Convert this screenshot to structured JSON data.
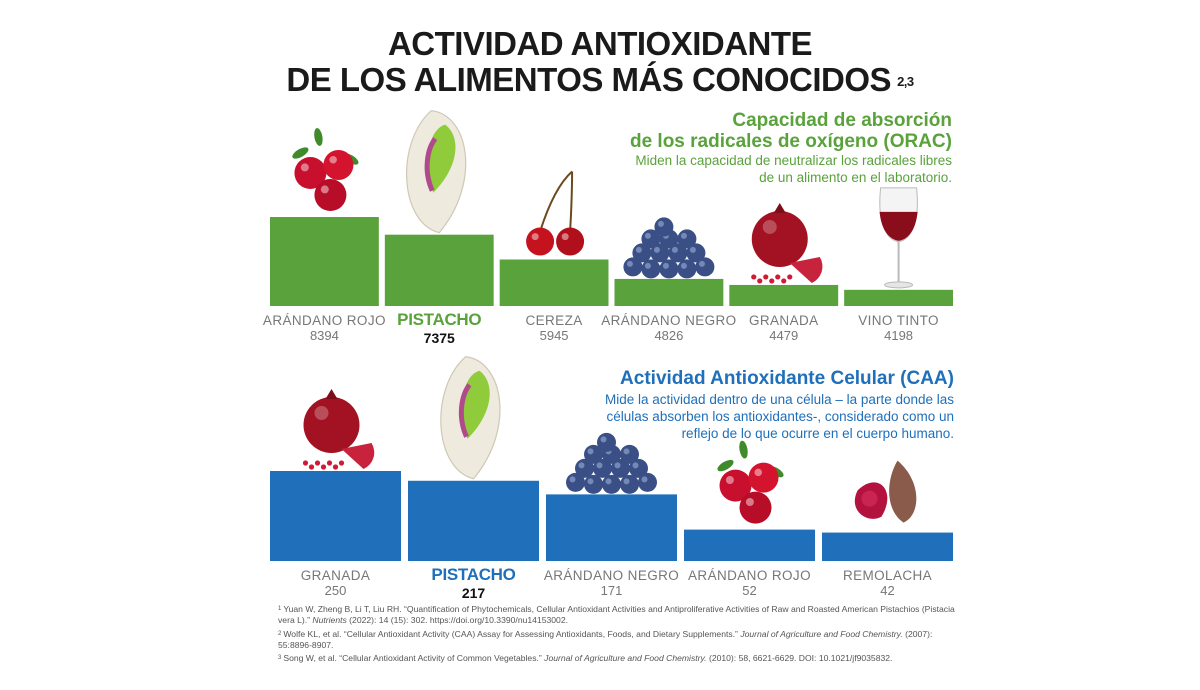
{
  "title": {
    "line1": "ACTIVIDAD ANTIOXIDANTE",
    "line2": "DE LOS ALIMENTOS MÁS CONOCIDOS",
    "sup": "2,3"
  },
  "orac": {
    "heading_line1": "Capacidad de absorción",
    "heading_line2": "de los radicales de oxígeno (ORAC)",
    "desc_line1": "Miden la capacidad de neutralizar los radicales libres",
    "desc_line2": "de un alimento en el laboratorio."
  },
  "caa": {
    "heading": "Actividad Antioxidante Celular (CAA)",
    "desc_line1": "Mide la actividad dentro de una célula – la parte donde las",
    "desc_line2": "células absorben los antioxidantes-, considerado como un",
    "desc_line3": "reflejo de lo que ocurre en el cuerpo humano."
  },
  "colors": {
    "orac_bar": "#5aa23c",
    "caa_bar": "#1f6fba",
    "label": "#777777",
    "value_highlight": "#111111"
  },
  "chart_data": [
    {
      "type": "bar",
      "title": "Capacidad de absorción de los radicales de oxígeno (ORAC)",
      "categories": [
        "ARÁNDANO ROJO",
        "PISTACHO",
        "CEREZA",
        "ARÁNDANO NEGRO",
        "GRANADA",
        "VINO TINTO"
      ],
      "values": [
        8394,
        7375,
        5945,
        4826,
        4479,
        4198
      ],
      "icons": [
        "cranberry-icon",
        "pistachio-icon",
        "cherry-icon",
        "blueberry-icon",
        "pomegranate-icon",
        "wine-glass-icon"
      ],
      "highlight": "PISTACHO",
      "value_baseline": 3900
    },
    {
      "type": "bar",
      "title": "Actividad Antioxidante Celular (CAA)",
      "categories": [
        "GRANADA",
        "PISTACHO",
        "ARÁNDANO NEGRO",
        "ARÁNDANO ROJO",
        "REMOLACHA"
      ],
      "values": [
        250,
        217,
        171,
        52,
        42
      ],
      "icons": [
        "pomegranate-icon",
        "pistachio-icon",
        "blueberry-icon",
        "cranberry-icon",
        "beet-icon"
      ],
      "highlight": "PISTACHO",
      "value_baseline": 0
    }
  ],
  "references": [
    {
      "num": "1",
      "text": "Yuan W, Zheng B, Li T, Liu RH. “Quantification of Phytochemicals, Cellular Antioxidant Activities and Antiproliferative Activities of Raw and Roasted American Pistachios (Pistacia vera L).”",
      "journal": "Nutrients",
      "tail": "(2022): 14 (15): 302. https://doi.org/10.3390/nu14153002."
    },
    {
      "num": "2",
      "text": "Wolfe KL, et al. “Cellular Antioxidant Activity (CAA) Assay for Assessing Antioxidants, Foods, and Dietary Supplements.”",
      "journal": "Journal of Agriculture and Food Chemistry.",
      "tail": "(2007): 55:8896-8907."
    },
    {
      "num": "3",
      "text": "Song W, et al. “Cellular Antioxidant Activity of Common Vegetables.”",
      "journal": "Journal of Agriculture and Food Chemistry.",
      "tail": "(2010): 58, 6621-6629. DOI: 10.1021/jf9035832."
    }
  ]
}
